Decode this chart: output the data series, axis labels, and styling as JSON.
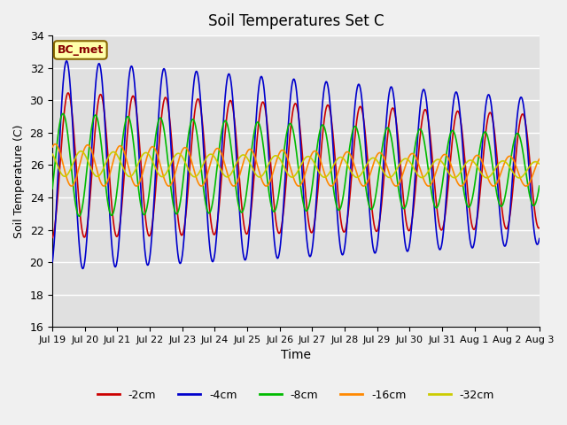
{
  "title": "Soil Temperatures Set C",
  "xlabel": "Time",
  "ylabel": "Soil Temperature (C)",
  "ylim": [
    16,
    34
  ],
  "yticks": [
    16,
    18,
    20,
    22,
    24,
    26,
    28,
    30,
    32,
    34
  ],
  "xtick_labels": [
    "Jul 19",
    "Jul 20",
    "Jul 21",
    "Jul 22",
    "Jul 23",
    "Jul 24",
    "Jul 25",
    "Jul 26",
    "Jul 27",
    "Jul 28",
    "Jul 29",
    "Jul 30",
    "Jul 31",
    "Aug 1",
    "Aug 2",
    "Aug 3"
  ],
  "legend_labels": [
    "-2cm",
    "-4cm",
    "-8cm",
    "-16cm",
    "-32cm"
  ],
  "legend_colors": [
    "#cc0000",
    "#0000cc",
    "#00bb00",
    "#ff8800",
    "#cccc00"
  ],
  "annotation_text": "BC_met",
  "annotation_bg": "#ffffaa",
  "annotation_border": "#886600",
  "plot_bg": "#e0e0e0",
  "fig_bg": "#f0f0f0"
}
